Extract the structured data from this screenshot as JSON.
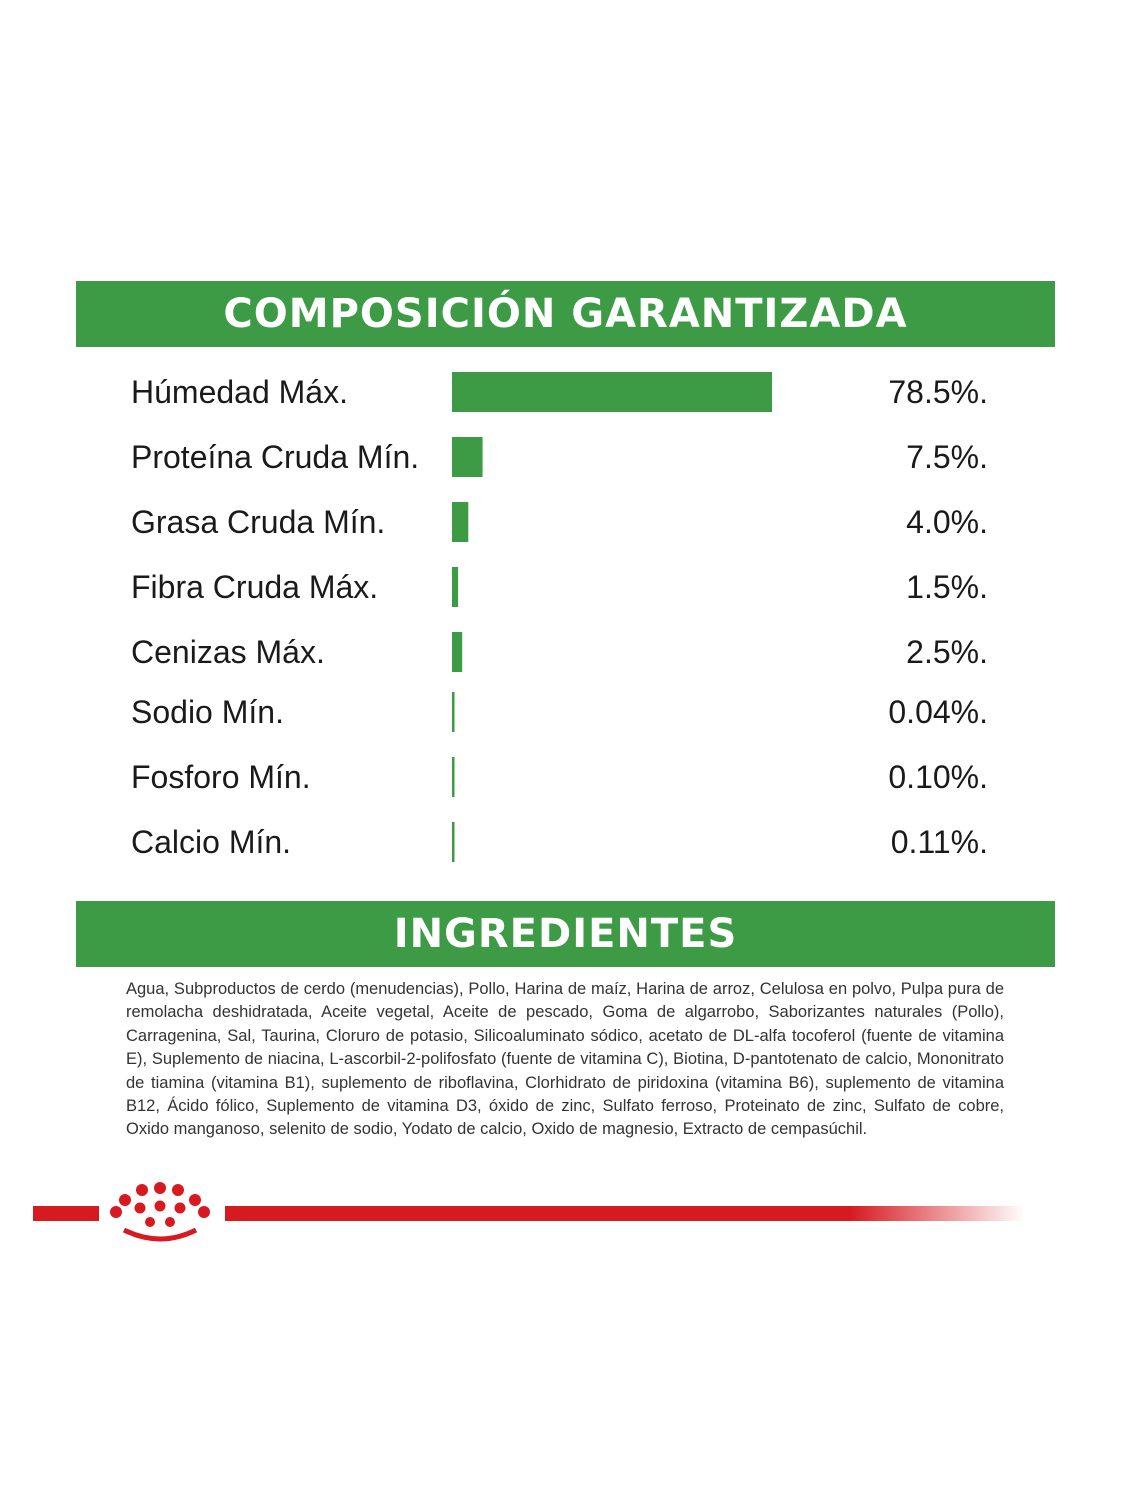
{
  "colors": {
    "green": "#3e9b45",
    "red": "#d71920",
    "white": "#ffffff"
  },
  "composition": {
    "title": "COMPOSICIÓN GARANTIZADA"
  },
  "chart_data": {
    "type": "bar",
    "orientation": "horizontal",
    "title": "COMPOSICIÓN GARANTIZADA",
    "categories": [
      "Húmedad Máx.",
      "Proteína Cruda Mín.",
      "Grasa Cruda Mín.",
      "Fibra Cruda Máx.",
      "Cenizas Máx.",
      "Sodio Mín.",
      "Fosforo Mín.",
      "Calcio Mín."
    ],
    "values": [
      78.5,
      7.5,
      4.0,
      1.5,
      2.5,
      0.04,
      0.1,
      0.11
    ],
    "value_labels": [
      "78.5%.",
      "7.5%.",
      "4.0%.",
      "1.5%.",
      "2.5%.",
      "0.04%.",
      "0.10%.",
      "0.11%."
    ],
    "xlim": [
      0,
      78.5
    ],
    "grid": false,
    "legend": "none"
  },
  "ingredients": {
    "title": "INGREDIENTES",
    "text": "Agua, Subproductos de cerdo (menudencias), Pollo, Harina de maíz, Harina de arroz, Celulosa en polvo, Pulpa pura de remolacha deshidratada, Aceite vegetal, Aceite de pescado, Goma de algarrobo, Saborizantes naturales (Pollo), Carragenina, Sal, Taurina, Cloruro de potasio, Silicoaluminato sódico, acetato de DL-alfa tocoferol (fuente de vitamina E), Suplemento de niacina, L-ascorbil-2-polifosfato (fuente de vitamina C), Biotina, D-pantotenato de calcio, Mononitrato de tiamina (vitamina B1), suplemento de riboflavina, Clorhidrato de piridoxina (vitamina B6), suplemento de vitamina B12, Ácido fólico, Suplemento de vitamina D3, óxido de zinc, Sulfato ferroso, Proteinato de zinc, Sulfato de cobre, Oxido manganoso, selenito de sodio, Yodato de calcio, Oxido de magnesio, Extracto de cempasúchil."
  },
  "logo": {
    "icon": "royal-crown-icon"
  }
}
